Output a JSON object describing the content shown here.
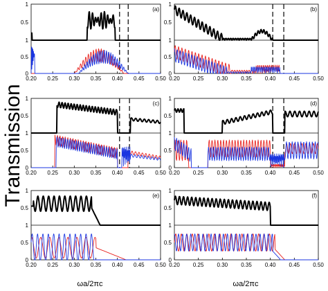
{
  "figure": {
    "ylabel": "Transmission",
    "xlabel": "ωa/2πc"
  },
  "colors": {
    "top_trace": "#000000",
    "red_trace": "#e8211d",
    "blue_trace": "#1a35e0",
    "dashed_lines": "#000000"
  },
  "chart_data": [
    {
      "type": "line",
      "panel": "a",
      "label": "(a)",
      "xlim": [
        0.2,
        0.5
      ],
      "x_ticks": [
        "0.20",
        "0.25",
        "0.30",
        "0.35",
        "0.40",
        "0.45",
        "0.50"
      ],
      "top": {
        "y_ticks": [
          "1",
          "0.5",
          "0"
        ],
        "ylim": [
          0,
          1
        ]
      },
      "bottom": {
        "y_ticks": [
          "1",
          "0.5",
          "0"
        ],
        "ylim": [
          0,
          1
        ]
      },
      "dashed_x": [
        0.405,
        0.425
      ],
      "series": [
        {
          "role": "top",
          "color": "black",
          "profile": "bandA",
          "x": [
            0.2,
            0.5
          ]
        },
        {
          "role": "bottom",
          "color": "red",
          "profile": "redA",
          "x": [
            0.2,
            0.5
          ]
        },
        {
          "role": "bottom",
          "color": "blue",
          "profile": "blueA",
          "x": [
            0.2,
            0.5
          ]
        }
      ]
    },
    {
      "type": "line",
      "panel": "b",
      "label": "(b)",
      "xlim": [
        0.2,
        0.5
      ],
      "x_ticks": [
        "0.20",
        "0.25",
        "0.30",
        "0.35",
        "0.40",
        "0.45",
        "0.50"
      ],
      "top": {
        "y_ticks": [
          "1",
          "0.5",
          "0"
        ],
        "ylim": [
          0,
          1
        ]
      },
      "bottom": {
        "y_ticks": [
          "1",
          "0.5",
          "0"
        ],
        "ylim": [
          0,
          1
        ]
      },
      "dashed_x": [
        0.405,
        0.428
      ],
      "series": [
        {
          "role": "top",
          "color": "black",
          "profile": "bandB"
        },
        {
          "role": "bottom",
          "color": "red",
          "profile": "redB"
        },
        {
          "role": "bottom",
          "color": "blue",
          "profile": "blueB"
        }
      ]
    },
    {
      "type": "line",
      "panel": "c",
      "label": "(c)",
      "xlim": [
        0.2,
        0.5
      ],
      "x_ticks": [
        "0.20",
        "0.25",
        "0.30",
        "0.35",
        "0.40",
        "0.45",
        "0.50"
      ],
      "top": {
        "y_ticks": [
          "1",
          "0.5",
          "0"
        ],
        "ylim": [
          0,
          1
        ]
      },
      "bottom": {
        "y_ticks": [
          "1",
          "0.5",
          "0"
        ],
        "ylim": [
          0,
          1
        ]
      },
      "dashed_x": [
        0.405,
        0.428
      ],
      "series": [
        {
          "role": "top",
          "color": "black",
          "profile": "bandC"
        },
        {
          "role": "bottom",
          "color": "red",
          "profile": "redC"
        },
        {
          "role": "bottom",
          "color": "blue",
          "profile": "blueC"
        }
      ]
    },
    {
      "type": "line",
      "panel": "d",
      "label": "(d)",
      "xlim": [
        0.2,
        0.5
      ],
      "x_ticks": [
        "0.20",
        "0.25",
        "0.30",
        "0.35",
        "0.40",
        "0.45",
        "0.50"
      ],
      "top": {
        "y_ticks": [
          "1",
          "0.5",
          "0"
        ],
        "ylim": [
          0,
          1
        ]
      },
      "bottom": {
        "y_ticks": [
          "1",
          "0.5",
          "0"
        ],
        "ylim": [
          0,
          1
        ]
      },
      "dashed_x": [
        0.405,
        0.428
      ],
      "series": [
        {
          "role": "top",
          "color": "black",
          "profile": "bandD"
        },
        {
          "role": "bottom",
          "color": "red",
          "profile": "redD"
        },
        {
          "role": "bottom",
          "color": "blue",
          "profile": "blueD"
        }
      ]
    },
    {
      "type": "line",
      "panel": "e",
      "label": "(e)",
      "xlim": [
        0.2,
        0.5
      ],
      "x_ticks": [
        "0.20",
        "0.25",
        "0.30",
        "0.35",
        "0.40",
        "0.45",
        "0.50"
      ],
      "top": {
        "y_ticks": [
          "1",
          "0.5",
          "0"
        ],
        "ylim": [
          0,
          1
        ]
      },
      "bottom": {
        "y_ticks": [
          "1",
          "0.5",
          "0"
        ],
        "ylim": [
          0,
          1
        ]
      },
      "dashed_x": [],
      "series": [
        {
          "role": "top",
          "color": "black",
          "profile": "bandE"
        },
        {
          "role": "bottom",
          "color": "red",
          "profile": "redE"
        },
        {
          "role": "bottom",
          "color": "blue",
          "profile": "blueE"
        }
      ]
    },
    {
      "type": "line",
      "panel": "f",
      "label": "(f)",
      "xlim": [
        0.2,
        0.5
      ],
      "x_ticks": [
        "0.20",
        "0.25",
        "0.30",
        "0.35",
        "0.40",
        "0.45",
        "0.50"
      ],
      "top": {
        "y_ticks": [
          "1",
          "0.5",
          "0"
        ],
        "ylim": [
          0,
          1
        ]
      },
      "bottom": {
        "y_ticks": [
          "1",
          "0.5",
          "0"
        ],
        "ylim": [
          0,
          1
        ]
      },
      "dashed_x": [],
      "series": [
        {
          "role": "top",
          "color": "black",
          "profile": "bandF"
        },
        {
          "role": "bottom",
          "color": "red",
          "profile": "redF"
        },
        {
          "role": "bottom",
          "color": "blue",
          "profile": "blueF"
        }
      ]
    }
  ]
}
